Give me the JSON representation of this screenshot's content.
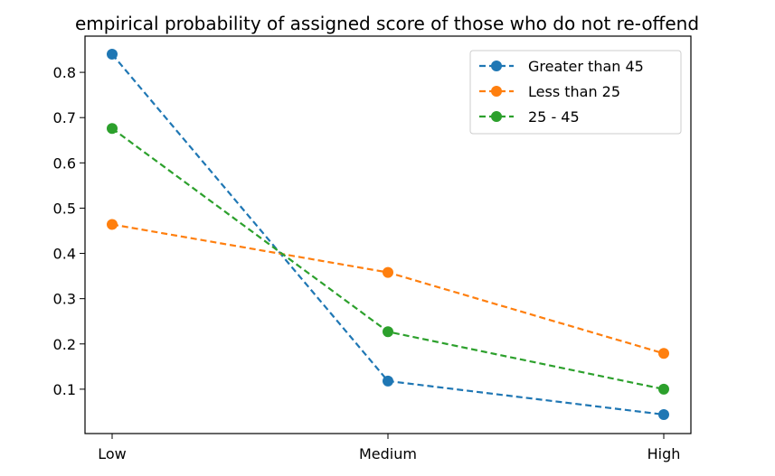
{
  "chart_data": {
    "type": "line",
    "title": "empirical probability of assigned score of those who do not re-offend",
    "xlabel": "",
    "ylabel": "",
    "categories": [
      "Low",
      "Medium",
      "High"
    ],
    "ylim": [
      0.002,
      0.88
    ],
    "yticks": [
      0.1,
      0.2,
      0.3,
      0.4,
      0.5,
      0.6,
      0.7,
      0.8
    ],
    "ytick_labels": [
      "0.1",
      "0.2",
      "0.3",
      "0.4",
      "0.5",
      "0.6",
      "0.7",
      "0.8"
    ],
    "grid": false,
    "legend_position": "top-right",
    "line_style": "dashed",
    "marker": "circle",
    "series": [
      {
        "name": "Greater than 45",
        "color": "#1f77b4",
        "values": [
          0.84,
          0.118,
          0.044
        ]
      },
      {
        "name": "Less than 25",
        "color": "#ff7f0e",
        "values": [
          0.464,
          0.358,
          0.179
        ]
      },
      {
        "name": "25 - 45",
        "color": "#2ca02c",
        "values": [
          0.676,
          0.227,
          0.1
        ]
      }
    ]
  }
}
